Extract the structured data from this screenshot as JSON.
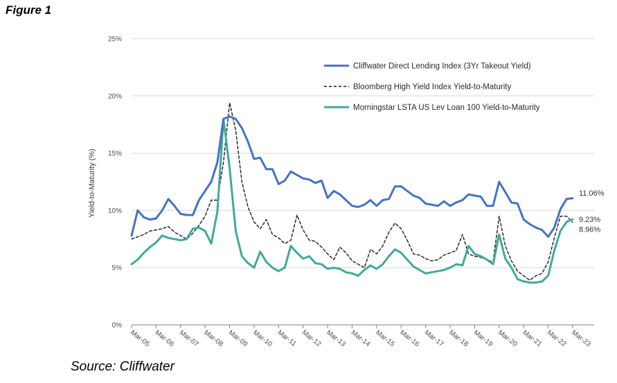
{
  "figure_label": "Figure 1",
  "source": "Source: Cliffwater",
  "chart_data": {
    "type": "line",
    "ylabel": "Yield-to-Maturity (%)",
    "xlabel": "",
    "ylim": [
      0,
      25
    ],
    "yticks": [
      0,
      5,
      10,
      15,
      20,
      25
    ],
    "ytick_labels": [
      "0%",
      "5%",
      "10%",
      "15%",
      "20%",
      "25%"
    ],
    "x": [
      2005.0,
      2005.25,
      2005.5,
      2005.75,
      2006.0,
      2006.25,
      2006.5,
      2006.75,
      2007.0,
      2007.25,
      2007.5,
      2007.75,
      2008.0,
      2008.25,
      2008.5,
      2008.75,
      2009.0,
      2009.25,
      2009.5,
      2009.75,
      2010.0,
      2010.25,
      2010.5,
      2010.75,
      2011.0,
      2011.25,
      2011.5,
      2011.75,
      2012.0,
      2012.25,
      2012.5,
      2012.75,
      2013.0,
      2013.25,
      2013.5,
      2013.75,
      2014.0,
      2014.25,
      2014.5,
      2014.75,
      2015.0,
      2015.25,
      2015.5,
      2015.75,
      2016.0,
      2016.25,
      2016.5,
      2016.75,
      2017.0,
      2017.25,
      2017.5,
      2017.75,
      2018.0,
      2018.25,
      2018.5,
      2018.75,
      2019.0,
      2019.25,
      2019.5,
      2019.75,
      2020.0,
      2020.25,
      2020.5,
      2020.75,
      2021.0,
      2021.25,
      2021.5,
      2021.75,
      2022.0,
      2022.25,
      2022.5,
      2022.75,
      2023.0
    ],
    "xticks": [
      2005,
      2006,
      2007,
      2008,
      2009,
      2010,
      2011,
      2012,
      2013,
      2014,
      2015,
      2016,
      2017,
      2018,
      2019,
      2020,
      2021,
      2022,
      2023
    ],
    "xtick_labels": [
      "Mar-05",
      "Mar-06",
      "Mar-07",
      "Mar-08",
      "Mar-09",
      "Mar-10",
      "Mar-11",
      "Mar-12",
      "Mar-13",
      "Mar-14",
      "Mar-15",
      "Mar-16",
      "Mar-17",
      "Mar-18",
      "Mar-19",
      "Mar-20",
      "Mar-21",
      "Mar-22",
      "Mar-23"
    ],
    "series": [
      {
        "name": "Cliffwater Direct Lending Index (3Yr Takeout Yield)",
        "color": "#4472c4",
        "dash": "solid",
        "values": [
          7.8,
          10.0,
          9.4,
          9.2,
          9.3,
          10.0,
          11.0,
          10.4,
          9.7,
          9.6,
          9.6,
          10.9,
          11.7,
          12.5,
          14.2,
          18.0,
          18.2,
          18.0,
          17.2,
          16.0,
          14.5,
          14.6,
          13.6,
          13.6,
          12.3,
          12.6,
          13.4,
          13.1,
          12.8,
          12.7,
          12.4,
          12.6,
          11.1,
          11.7,
          11.4,
          10.9,
          10.4,
          10.3,
          10.5,
          10.9,
          10.4,
          10.9,
          11.0,
          12.1,
          12.1,
          11.7,
          11.3,
          11.1,
          10.6,
          10.5,
          10.4,
          10.8,
          10.4,
          10.7,
          10.9,
          11.4,
          11.3,
          11.2,
          10.4,
          10.4,
          12.5,
          11.6,
          10.7,
          10.6,
          9.2,
          8.8,
          8.5,
          8.3,
          7.7,
          8.5,
          10.1,
          11.0,
          11.06
        ]
      },
      {
        "name": "Bloomberg High Yield Index Yield-to-Maturity",
        "color": "#1a1a1a",
        "dash": "dashed",
        "values": [
          7.5,
          7.7,
          7.9,
          8.2,
          8.3,
          8.4,
          8.6,
          8.1,
          7.8,
          7.5,
          8.0,
          8.7,
          9.5,
          10.9,
          10.9,
          14.2,
          19.4,
          17.0,
          12.5,
          10.3,
          9.0,
          8.4,
          9.2,
          7.9,
          7.6,
          7.1,
          7.4,
          9.6,
          8.3,
          7.4,
          7.3,
          6.8,
          6.2,
          5.7,
          6.8,
          6.3,
          5.6,
          5.3,
          5.0,
          6.6,
          6.2,
          6.9,
          8.1,
          8.9,
          8.4,
          7.4,
          6.2,
          6.1,
          5.8,
          5.6,
          5.7,
          6.1,
          6.3,
          6.5,
          7.9,
          6.2,
          6.0,
          5.9,
          5.7,
          5.5,
          9.5,
          6.9,
          5.6,
          4.7,
          4.3,
          3.9,
          4.3,
          4.5,
          5.5,
          7.6,
          9.5,
          9.5,
          8.96
        ]
      },
      {
        "name": "Morningstar LSTA US Lev Loan 100 Yield-to-Maturity",
        "color": "#3fa99a",
        "dash": "solid",
        "values": [
          5.3,
          5.7,
          6.3,
          6.8,
          7.2,
          7.8,
          7.6,
          7.5,
          7.4,
          7.5,
          8.4,
          8.5,
          8.2,
          7.1,
          9.9,
          18.0,
          13.7,
          8.2,
          6.0,
          5.4,
          5.0,
          6.4,
          5.5,
          5.0,
          4.7,
          5.0,
          6.9,
          6.3,
          5.8,
          6.0,
          5.4,
          5.3,
          4.9,
          5.0,
          4.9,
          4.6,
          4.5,
          4.3,
          4.8,
          5.2,
          4.9,
          5.3,
          6.0,
          6.6,
          6.3,
          5.7,
          5.1,
          4.8,
          4.5,
          4.6,
          4.7,
          4.8,
          5.0,
          5.3,
          5.2,
          6.9,
          6.2,
          6.0,
          5.7,
          5.3,
          7.9,
          5.8,
          5.0,
          4.0,
          3.8,
          3.7,
          3.7,
          3.8,
          4.3,
          6.5,
          8.2,
          9.0,
          9.23
        ]
      }
    ],
    "end_labels": [
      {
        "series": 0,
        "text": "11.06%"
      },
      {
        "series": 2,
        "text": "9.23%"
      },
      {
        "series": 1,
        "text": "8.96%"
      }
    ],
    "legend_position": "top-right",
    "grid": "horizontal"
  }
}
